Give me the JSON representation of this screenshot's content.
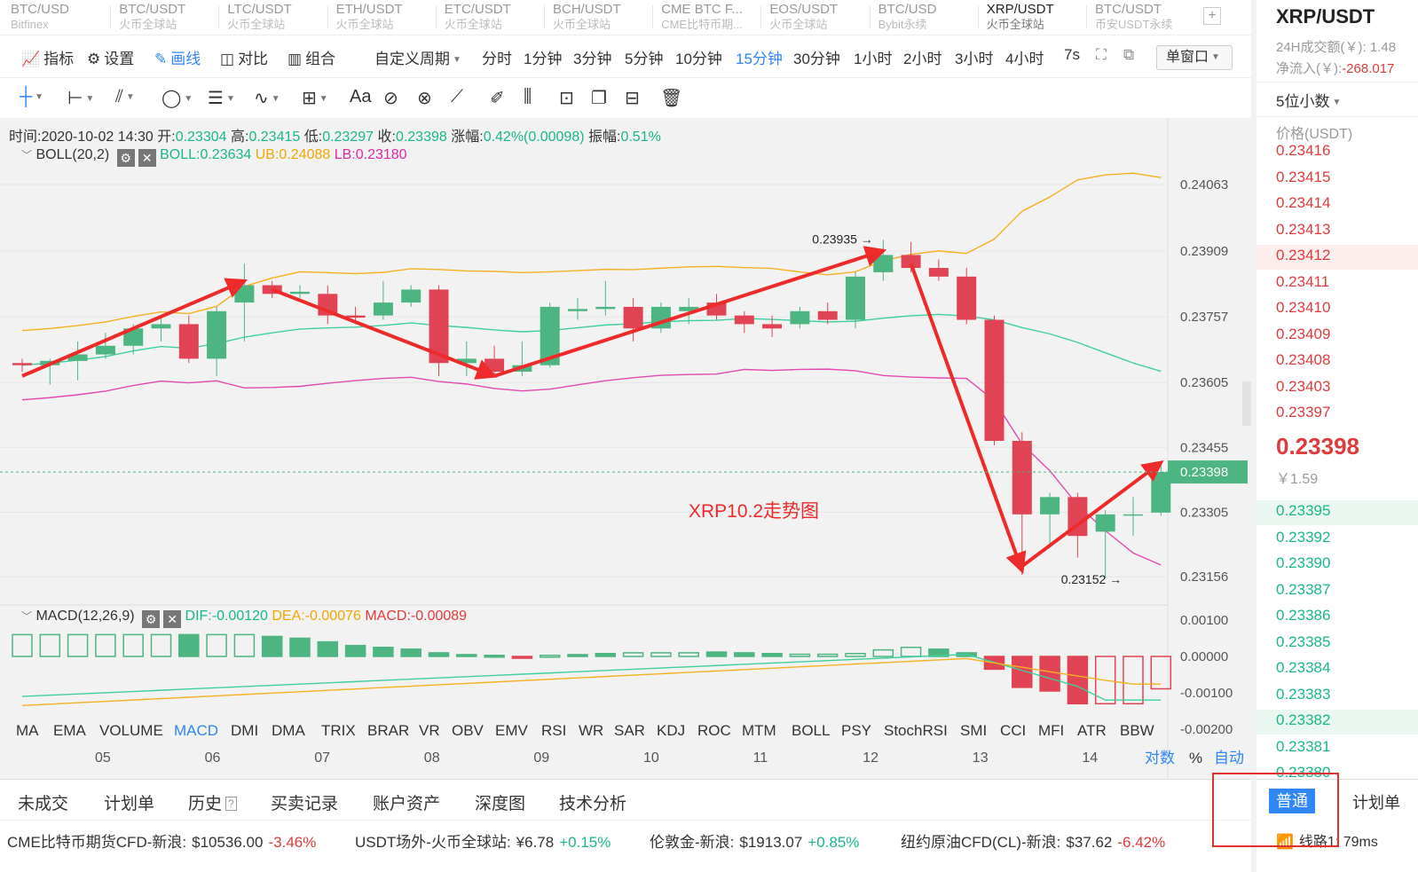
{
  "market_tabs": [
    {
      "pair": "BTC/USD",
      "exchange": "Bitfinex"
    },
    {
      "pair": "BTC/USDT",
      "exchange": "火币全球站"
    },
    {
      "pair": "LTC/USDT",
      "exchange": "火币全球站"
    },
    {
      "pair": "ETH/USDT",
      "exchange": "火币全球站"
    },
    {
      "pair": "ETC/USDT",
      "exchange": "火币全球站"
    },
    {
      "pair": "BCH/USDT",
      "exchange": "火币全球站"
    },
    {
      "pair": "CME BTC F...",
      "exchange": "CME比特币期..."
    },
    {
      "pair": "EOS/USDT",
      "exchange": "火币全球站"
    },
    {
      "pair": "BTC/USD",
      "exchange": "Bybit永续"
    },
    {
      "pair": "XRP/USDT",
      "exchange": "火币全球站"
    },
    {
      "pair": "BTC/USDT",
      "exchange": "币安USDT永续"
    }
  ],
  "add_tab": "+",
  "toolbar": {
    "indicator": "指标",
    "settings": "设置",
    "draw": "画线",
    "compare": "对比",
    "combine": "组合",
    "custom_period": "自定义周期",
    "periods": [
      "分时",
      "1分钟",
      "3分钟",
      "5分钟",
      "10分钟",
      "15分钟",
      "30分钟",
      "1小时",
      "2小时",
      "3小时",
      "4小时",
      "7s"
    ],
    "active_period": "15分钟",
    "window_mode": "单窗口"
  },
  "draw_tools": {
    "text_tool": "Aa"
  },
  "info_bar": {
    "time_label": "时间:",
    "time": "2020-10-02 14:30",
    "open_label": "开:",
    "open": "0.23304",
    "high_label": "高:",
    "high": "0.23415",
    "low_label": "低:",
    "low": "0.23297",
    "close_label": "收:",
    "close": "0.23398",
    "change_label": "涨幅:",
    "change": "0.42%(0.00098)",
    "amp_label": "振幅:",
    "amp": "0.51%"
  },
  "boll": {
    "name": "BOLL(20,2)",
    "boll": "BOLL:0.23634",
    "ub": "UB:0.24088",
    "lb": "LB:0.23180"
  },
  "macd": {
    "name": "MACD(12,26,9)",
    "dif": "DIF:-0.00120",
    "dea": "DEA:-0.00076",
    "macd": "MACD:-0.00089"
  },
  "chart_data": {
    "type": "candlestick",
    "title": "XRP10.2走势图",
    "x_ticks": [
      "05",
      "06",
      "07",
      "08",
      "09",
      "10",
      "11",
      "12",
      "13",
      "14"
    ],
    "price_ticks": [
      "0.24063",
      "0.23909",
      "0.23757",
      "0.23605",
      "0.23455",
      "0.23305",
      "0.23156"
    ],
    "macd_ticks": [
      "0.00100",
      "0.00000",
      "-0.00100",
      "-0.00200"
    ],
    "last_price": "0.23398",
    "max_label": "0.23935",
    "min_label": "0.23152",
    "candles": [
      [
        0.2365,
        0.2366,
        0.2363,
        0.23645
      ],
      [
        0.23645,
        0.2366,
        0.236,
        0.23655
      ],
      [
        0.23655,
        0.237,
        0.2361,
        0.2367
      ],
      [
        0.2367,
        0.2372,
        0.2366,
        0.2369
      ],
      [
        0.2369,
        0.2374,
        0.2367,
        0.2373
      ],
      [
        0.2373,
        0.2376,
        0.237,
        0.2374
      ],
      [
        0.2374,
        0.2376,
        0.2365,
        0.2366
      ],
      [
        0.2366,
        0.2378,
        0.2362,
        0.2377
      ],
      [
        0.2379,
        0.2388,
        0.237,
        0.2383
      ],
      [
        0.2383,
        0.2384,
        0.238,
        0.2381
      ],
      [
        0.2381,
        0.2383,
        0.238,
        0.23815
      ],
      [
        0.2381,
        0.2383,
        0.2374,
        0.2376
      ],
      [
        0.2376,
        0.2378,
        0.2374,
        0.23755
      ],
      [
        0.2376,
        0.2384,
        0.2375,
        0.2379
      ],
      [
        0.2379,
        0.2383,
        0.2378,
        0.2382
      ],
      [
        0.2382,
        0.2383,
        0.2362,
        0.2365
      ],
      [
        0.2365,
        0.237,
        0.2362,
        0.2366
      ],
      [
        0.2366,
        0.2369,
        0.2362,
        0.2363
      ],
      [
        0.2363,
        0.237,
        0.2362,
        0.23645
      ],
      [
        0.23645,
        0.2379,
        0.2364,
        0.2378
      ],
      [
        0.2377,
        0.238,
        0.2375,
        0.23775
      ],
      [
        0.23775,
        0.2384,
        0.2376,
        0.2378
      ],
      [
        0.2378,
        0.238,
        0.237,
        0.2373
      ],
      [
        0.2373,
        0.2379,
        0.2372,
        0.2378
      ],
      [
        0.2377,
        0.238,
        0.2374,
        0.2378
      ],
      [
        0.2379,
        0.2381,
        0.2375,
        0.2376
      ],
      [
        0.2376,
        0.2377,
        0.2372,
        0.2374
      ],
      [
        0.2374,
        0.2376,
        0.2371,
        0.2373
      ],
      [
        0.2374,
        0.2378,
        0.2373,
        0.2377
      ],
      [
        0.2377,
        0.2379,
        0.2374,
        0.2375
      ],
      [
        0.2375,
        0.2386,
        0.2373,
        0.2385
      ],
      [
        0.2386,
        0.23935,
        0.2384,
        0.239
      ],
      [
        0.239,
        0.2393,
        0.2386,
        0.2387
      ],
      [
        0.2387,
        0.2389,
        0.2384,
        0.2385
      ],
      [
        0.2385,
        0.2387,
        0.2374,
        0.2375
      ],
      [
        0.2375,
        0.2376,
        0.2346,
        0.2347
      ],
      [
        0.2347,
        0.2349,
        0.2316,
        0.233
      ],
      [
        0.233,
        0.2335,
        0.2323,
        0.2334
      ],
      [
        0.2334,
        0.2335,
        0.232,
        0.2325
      ],
      [
        0.2326,
        0.2331,
        0.23152,
        0.233
      ],
      [
        0.233,
        0.2334,
        0.2325,
        0.233
      ],
      [
        0.23304,
        0.23415,
        0.23297,
        0.23398
      ]
    ],
    "macd_hist": [
      0.0006,
      0.0006,
      0.0006,
      0.0006,
      0.0006,
      0.0006,
      0.0006,
      0.0006,
      0.0006,
      0.00055,
      0.0005,
      0.0004,
      0.0003,
      0.00025,
      0.0002,
      0.0001,
      5e-05,
      3e-05,
      -3e-05,
      3e-05,
      5e-05,
      8e-05,
      0.0001,
      0.0001,
      0.0001,
      0.00012,
      0.0001,
      8e-05,
      6e-05,
      6e-05,
      8e-05,
      0.00018,
      0.00025,
      0.0002,
      0.0001,
      -0.00035,
      -0.00085,
      -0.00095,
      -0.0013,
      -0.0013,
      -0.0013,
      -0.00089
    ],
    "macd_hollow": [
      true,
      true,
      true,
      true,
      true,
      true,
      false,
      true,
      true,
      false,
      false,
      false,
      false,
      false,
      false,
      false,
      false,
      false,
      false,
      true,
      false,
      false,
      true,
      true,
      true,
      false,
      false,
      false,
      true,
      true,
      true,
      true,
      true,
      false,
      false,
      false,
      false,
      false,
      false,
      true,
      true,
      true
    ]
  },
  "indicator_tabs": [
    "MA",
    "EMA",
    "VOLUME",
    "MACD",
    "DMI",
    "DMA",
    "TRIX",
    "BRAR",
    "VR",
    "OBV",
    "EMV",
    "RSI",
    "WR",
    "SAR",
    "KDJ",
    "ROC",
    "MTM",
    "BOLL",
    "PSY",
    "StochRSI",
    "SMI",
    "CCI",
    "MFI",
    "ATR",
    "BBW"
  ],
  "active_indicator": "MACD",
  "scale_options": {
    "log": "对数",
    "percent": "%",
    "auto": "自动"
  },
  "bottom_tabs": [
    "未成交",
    "计划单",
    "历史",
    "买卖记录",
    "账户资产",
    "深度图",
    "技术分析"
  ],
  "ticker": [
    {
      "name": "CME比特币期货CFD-新浪:",
      "price": "$10536.00",
      "change": "-3.46%",
      "dir": "down"
    },
    {
      "name": "USDT场外-火币全球站:",
      "price": "¥6.78",
      "change": "+0.15%",
      "dir": "up"
    },
    {
      "name": "伦敦金-新浪:",
      "price": "$1913.07",
      "change": "+0.85%",
      "dir": "up"
    },
    {
      "name": "纽约原油CFD(CL)-新浪:",
      "price": "$37.62",
      "change": "-6.42%",
      "dir": "down"
    }
  ],
  "right_panel": {
    "pair": "XRP/USDT",
    "volume_label": "24H成交额(￥): 1.48",
    "inflow_label": "净流入(￥):",
    "inflow_value": "-268.017",
    "decimals": "5位小数",
    "price_header": "价格(USDT)",
    "asks": [
      "0.23416",
      "0.23415",
      "0.23414",
      "0.23413",
      "0.23412",
      "0.23411",
      "0.23410",
      "0.23409",
      "0.23408",
      "0.23403",
      "0.23397"
    ],
    "last_price": "0.23398",
    "last_cny": "￥1.59",
    "bids": [
      "0.23395",
      "0.23392",
      "0.23390",
      "0.23387",
      "0.23386",
      "0.23385",
      "0.23384",
      "0.23383",
      "0.23382",
      "0.23381",
      "0.23380"
    ],
    "order_normal": "普通",
    "order_plan": "计划单",
    "line_label": "线路1: 79ms"
  }
}
